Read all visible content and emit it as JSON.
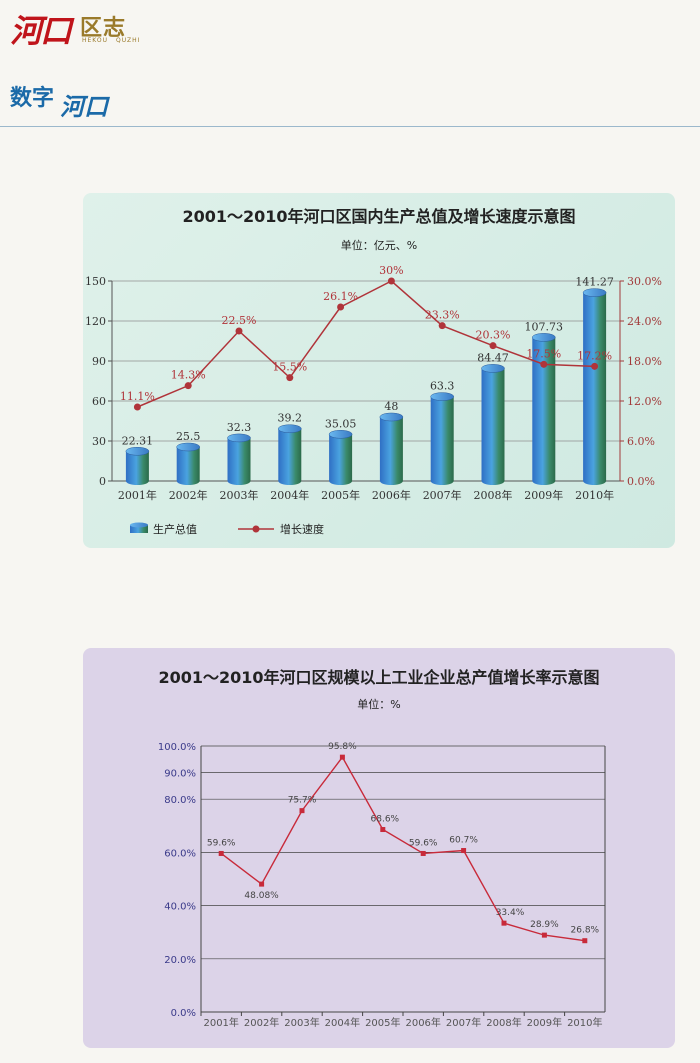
{
  "header": {
    "logo_text": "河口",
    "logo_text2": "区志",
    "logo_pinyin": [
      "HEKOU",
      "QUZHI"
    ],
    "section_a": "数字",
    "section_b": "河口"
  },
  "chart_data": [
    {
      "type": "bar",
      "title": "2001～2010年河口区国内生产总值及增长速度示意图",
      "unit_label": "单位：亿元、%",
      "categories": [
        "2001年",
        "2002年",
        "2003年",
        "2004年",
        "2005年",
        "2006年",
        "2007年",
        "2008年",
        "2009年",
        "2010年"
      ],
      "series": [
        {
          "name": "生产总值",
          "type": "bar",
          "axis": "left",
          "values": [
            22.31,
            25.5,
            32.3,
            39.2,
            35.05,
            48,
            63.3,
            84.47,
            107.73,
            141.27
          ],
          "labels": [
            "22.31",
            "25.5",
            "32.3",
            "39.2",
            "35.05",
            "48",
            "63.3",
            "84.47",
            "107.73",
            "141.27"
          ]
        },
        {
          "name": "增长速度",
          "type": "line",
          "axis": "right",
          "values": [
            11.1,
            14.3,
            22.5,
            15.5,
            26.1,
            30,
            23.3,
            20.3,
            17.5,
            17.2
          ],
          "labels": [
            "11.1%",
            "14.3%",
            "22.5%",
            "15.5%",
            "26.1%",
            "30%",
            "23.3%",
            "20.3%",
            "17.5%",
            "17.2%"
          ]
        }
      ],
      "ylim": [
        0,
        150
      ],
      "yticks": [
        "0",
        "30",
        "60",
        "90",
        "120",
        "150"
      ],
      "y2lim": [
        0,
        30
      ],
      "y2ticks": [
        "0.0%",
        "6.0%",
        "12.0%",
        "18.0%",
        "24.0%",
        "30.0%"
      ],
      "grid": true,
      "legend_position": "bottom-left",
      "colors": {
        "bar": "#3a78c8",
        "bar_side": "#4a9a6a",
        "line": "#b0343a"
      }
    },
    {
      "type": "line",
      "title": "2001～2010年河口区规模以上工业企业总产值增长率示意图",
      "unit_label": "单位：%",
      "categories": [
        "2001年",
        "2002年",
        "2003年",
        "2004年",
        "2005年",
        "2006年",
        "2007年",
        "2008年",
        "2009年",
        "2010年"
      ],
      "series": [
        {
          "values": [
            59.6,
            48.08,
            75.7,
            95.8,
            68.6,
            59.6,
            60.7,
            33.4,
            28.9,
            26.8
          ],
          "labels": [
            "59.6%",
            "48.08%",
            "75.7%",
            "95.8%",
            "68.6%",
            "59.6%",
            "60.7%",
            "33.4%",
            "28.9%",
            "26.8%"
          ]
        }
      ],
      "ylim": [
        0,
        100
      ],
      "yticks": [
        "0.0%",
        "20.0%",
        "40.0%",
        "60.0%",
        "80.0%",
        "90.0%",
        "100.0%"
      ],
      "grid": true,
      "colors": {
        "line": "#c82a3a"
      }
    }
  ]
}
